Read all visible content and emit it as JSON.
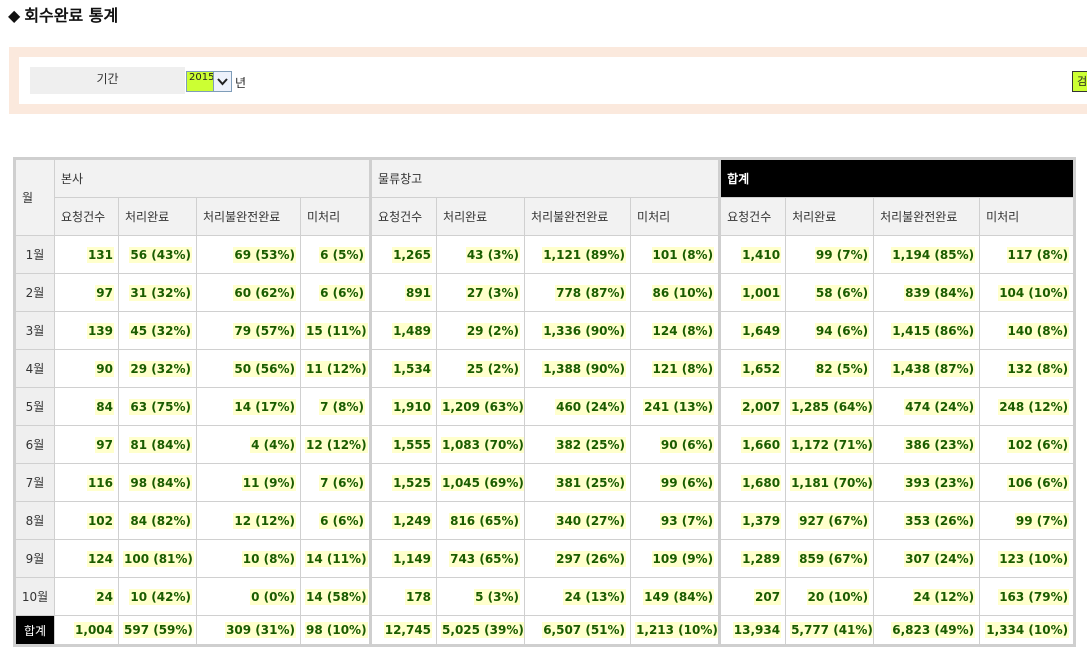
{
  "page": {
    "title": "회수완료 통계"
  },
  "filter": {
    "period_label": "기간",
    "year_value": "2015",
    "year_unit": "년",
    "search_label": "검색"
  },
  "table": {
    "month_header": "월",
    "groups": [
      "본사",
      "물류창고",
      "합계"
    ],
    "columns": [
      "요청건수",
      "처리완료",
      "처리불완전완료",
      "미처리"
    ],
    "rows": [
      {
        "month": "1월",
        "cells": [
          "131",
          "56 (43%)",
          "69 (53%)",
          "6 (5%)",
          "1,265",
          "43 (3%)",
          "1,121 (89%)",
          "101 (8%)",
          "1,410",
          "99 (7%)",
          "1,194 (85%)",
          "117 (8%)"
        ]
      },
      {
        "month": "2월",
        "cells": [
          "97",
          "31 (32%)",
          "60 (62%)",
          "6 (6%)",
          "891",
          "27 (3%)",
          "778 (87%)",
          "86 (10%)",
          "1,001",
          "58 (6%)",
          "839 (84%)",
          "104 (10%)"
        ]
      },
      {
        "month": "3월",
        "cells": [
          "139",
          "45 (32%)",
          "79 (57%)",
          "15 (11%)",
          "1,489",
          "29 (2%)",
          "1,336 (90%)",
          "124 (8%)",
          "1,649",
          "94 (6%)",
          "1,415 (86%)",
          "140 (8%)"
        ]
      },
      {
        "month": "4월",
        "cells": [
          "90",
          "29 (32%)",
          "50 (56%)",
          "11 (12%)",
          "1,534",
          "25 (2%)",
          "1,388 (90%)",
          "121 (8%)",
          "1,652",
          "82 (5%)",
          "1,438 (87%)",
          "132 (8%)"
        ]
      },
      {
        "month": "5월",
        "cells": [
          "84",
          "63 (75%)",
          "14 (17%)",
          "7 (8%)",
          "1,910",
          "1,209 (63%)",
          "460 (24%)",
          "241 (13%)",
          "2,007",
          "1,285 (64%)",
          "474 (24%)",
          "248 (12%)"
        ]
      },
      {
        "month": "6월",
        "cells": [
          "97",
          "81 (84%)",
          "4 (4%)",
          "12 (12%)",
          "1,555",
          "1,083 (70%)",
          "382 (25%)",
          "90 (6%)",
          "1,660",
          "1,172 (71%)",
          "386 (23%)",
          "102 (6%)"
        ]
      },
      {
        "month": "7월",
        "cells": [
          "116",
          "98 (84%)",
          "11 (9%)",
          "7 (6%)",
          "1,525",
          "1,045 (69%)",
          "381 (25%)",
          "99 (6%)",
          "1,680",
          "1,181 (70%)",
          "393 (23%)",
          "106 (6%)"
        ]
      },
      {
        "month": "8월",
        "cells": [
          "102",
          "84 (82%)",
          "12 (12%)",
          "6 (6%)",
          "1,249",
          "816 (65%)",
          "340 (27%)",
          "93 (7%)",
          "1,379",
          "927 (67%)",
          "353 (26%)",
          "99 (7%)"
        ]
      },
      {
        "month": "9월",
        "cells": [
          "124",
          "100 (81%)",
          "10 (8%)",
          "14 (11%)",
          "1,149",
          "743 (65%)",
          "297 (26%)",
          "109 (9%)",
          "1,289",
          "859 (67%)",
          "307 (24%)",
          "123 (10%)"
        ]
      },
      {
        "month": "10월",
        "cells": [
          "24",
          "10 (42%)",
          "0 (0%)",
          "14 (58%)",
          "178",
          "5 (3%)",
          "24 (13%)",
          "149 (84%)",
          "207",
          "20 (10%)",
          "24 (12%)",
          "163 (79%)"
        ]
      }
    ],
    "total": {
      "month": "합계",
      "cells": [
        "1,004",
        "597 (59%)",
        "309 (31%)",
        "98 (10%)",
        "12,745",
        "5,025 (39%)",
        "6,507 (51%)",
        "1,213 (10%)",
        "13,934",
        "5,777 (41%)",
        "6,823 (49%)",
        "1,334 (10%)"
      ]
    }
  },
  "colors": {
    "highlight": "#ccff33",
    "value_text": "#1a5c00",
    "value_bg": "#ffffcc",
    "filter_border": "#fbe9dd"
  }
}
